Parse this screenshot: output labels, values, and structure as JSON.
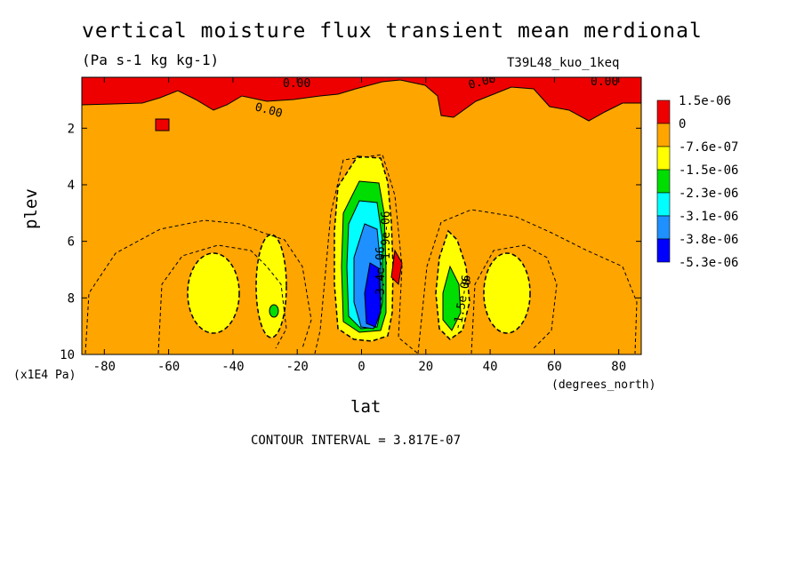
{
  "header": {
    "title": "vertical moisture flux transient mean merdional",
    "units": "(Pa s-1 kg kg-1)",
    "run": "T39L48_kuo_1keq"
  },
  "chart_data": {
    "type": "heatmap",
    "xlabel": "lat",
    "ylabel": "plev",
    "x_unit": "(degrees_north)",
    "y_unit": "(x1E4 Pa)",
    "xlim": [
      -87,
      87
    ],
    "ylim": [
      10,
      0.2
    ],
    "x_ticks": [
      -80,
      -60,
      -40,
      -20,
      0,
      20,
      40,
      60,
      80
    ],
    "y_ticks": [
      2,
      4,
      6,
      8,
      10
    ],
    "contour_interval": "CONTOUR INTERVAL = 3.817E-07",
    "levels": [
      {
        "label": "1.5e-06",
        "color": "#ee0000"
      },
      {
        "label": "0",
        "color": "#ffa500"
      },
      {
        "label": "-7.6e-07",
        "color": "#ffff00"
      },
      {
        "label": "-1.5e-06",
        "color": "#00dd00"
      },
      {
        "label": "-2.3e-06",
        "color": "#00ffff"
      },
      {
        "label": "-3.1e-06",
        "color": "#1e90ff"
      },
      {
        "label": "-3.8e-06",
        "color": "#0000ff"
      },
      {
        "label": "-5.3e-06",
        "color": "#0000ff"
      }
    ],
    "contour_labels": [
      "0.00",
      "0.00",
      "0.00",
      "0.00",
      "-1.9e-06",
      "-3.4e-06",
      "-1.5e-06",
      "0"
    ],
    "regions": [
      {
        "name": "background",
        "value": 0
      },
      {
        "name": "high-lat-positive",
        "value": 1.5e-06,
        "lat_range": [
          -87,
          87
        ],
        "plev_range": [
          0.2,
          1.1
        ]
      },
      {
        "name": "sh-extratropical-minimum",
        "value": -7.6e-07,
        "lat_range": [
          -55,
          -35
        ],
        "plev_range": [
          6.4,
          9.0
        ]
      },
      {
        "name": "sh-subtropical-minimum",
        "value": -1.5e-06,
        "lat_range": [
          -32,
          -22
        ],
        "plev_range": [
          5.8,
          9.2
        ]
      },
      {
        "name": "tropical-minimum",
        "value": -5.3e-06,
        "lat_range": [
          -8,
          8
        ],
        "plev_range": [
          2.9,
          9.4
        ]
      },
      {
        "name": "nh-subtropical-minimum",
        "value": -2.3e-06,
        "lat_range": [
          24,
          34
        ],
        "plev_range": [
          5.8,
          9.3
        ]
      },
      {
        "name": "nh-extratropical-minimum",
        "value": -7.6e-07,
        "lat_range": [
          36,
          54
        ],
        "plev_range": [
          6.4,
          9.0
        ]
      }
    ]
  }
}
